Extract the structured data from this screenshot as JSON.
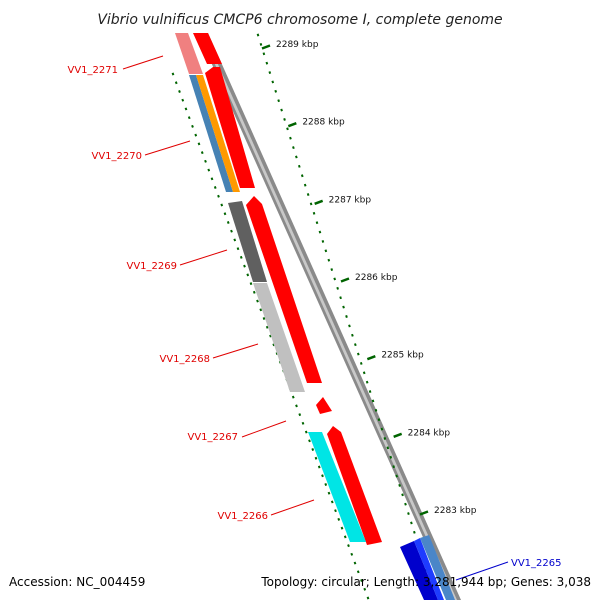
{
  "title": "Vibrio vulnificus CMCP6 chromosome I, complete genome",
  "footer": {
    "accession": "Accession: NC_004459",
    "summary": "Topology: circular; Length: 3,281,944 bp; Genes: 3,038"
  },
  "colors": {
    "forward_strand": "#ff0000",
    "label_red": "#e00000",
    "label_blue": "#0000cc",
    "tick_green": "#006400",
    "backbone_gray": "#8a8a8a"
  },
  "kbp_ticks": [
    {
      "value": 2289,
      "label": "2289 kbp"
    },
    {
      "value": 2288,
      "label": "2288 kbp"
    },
    {
      "value": 2287,
      "label": "2287 kbp"
    },
    {
      "value": 2286,
      "label": "2286 kbp"
    },
    {
      "value": 2285,
      "label": "2285 kbp"
    },
    {
      "value": 2284,
      "label": "2284 kbp"
    },
    {
      "value": 2283,
      "label": "2283 kbp"
    }
  ],
  "gene_labels": [
    {
      "id": "VV1_2271",
      "color": "#e00000"
    },
    {
      "id": "VV1_2270",
      "color": "#e00000"
    },
    {
      "id": "VV1_2269",
      "color": "#e00000"
    },
    {
      "id": "VV1_2268",
      "color": "#e00000"
    },
    {
      "id": "VV1_2267",
      "color": "#e00000"
    },
    {
      "id": "VV1_2266",
      "color": "#e00000"
    },
    {
      "id": "VV1_2265",
      "color": "#0000cc"
    }
  ]
}
